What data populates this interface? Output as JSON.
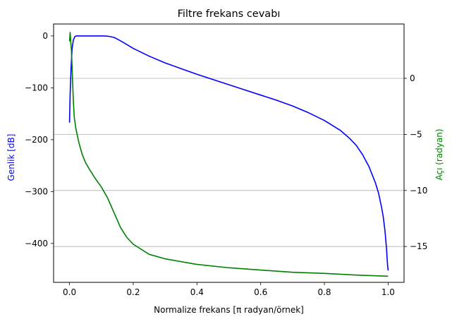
{
  "chart_data": {
    "type": "line",
    "title": "Filtre frekans cevabı",
    "xlabel": "Normalize frekans [π radyan/örnek]",
    "ylabel_left": "Genlik [dB]",
    "ylabel_right": "Açı (radyan)",
    "xlim": [
      -0.05,
      1.05
    ],
    "ylim_left": [
      -475,
      23
    ],
    "ylim_right": [
      -18.2,
      4.85
    ],
    "xticks": [
      0.0,
      0.2,
      0.4,
      0.6,
      0.8,
      1.0
    ],
    "xtick_labels": [
      "0.0",
      "0.2",
      "0.4",
      "0.6",
      "0.8",
      "1.0"
    ],
    "yticks_left": [
      0,
      -100,
      -200,
      -300,
      -400
    ],
    "ytick_labels_left": [
      "0",
      "−100",
      "−200",
      "−300",
      "−400"
    ],
    "yticks_right": [
      0,
      -5,
      -10,
      -15
    ],
    "ytick_labels_right": [
      "0",
      "−5",
      "−10",
      "−15"
    ],
    "grid": "horizontal lines at right-axis ticks",
    "colors": {
      "magnitude": "#0000ff",
      "phase": "#008000",
      "grid": "#b0b0b0",
      "axes": "#000000"
    },
    "series": [
      {
        "axis": "left",
        "color": "#0000ff",
        "x": [
          0.0,
          0.002,
          0.005,
          0.008,
          0.012,
          0.016,
          0.02,
          0.03,
          0.05,
          0.08,
          0.11,
          0.12,
          0.13,
          0.14,
          0.15,
          0.17,
          0.2,
          0.25,
          0.3,
          0.35,
          0.4,
          0.45,
          0.5,
          0.55,
          0.6,
          0.65,
          0.7,
          0.75,
          0.8,
          0.85,
          0.88,
          0.9,
          0.92,
          0.94,
          0.96,
          0.97,
          0.98,
          0.985,
          0.99,
          0.995,
          0.998,
          1.0
        ],
        "y": [
          -167,
          -110,
          -60,
          -25,
          -8,
          -2,
          0,
          0,
          0,
          0,
          0,
          -0.5,
          -1.5,
          -3,
          -6,
          -13,
          -24,
          -39,
          -52,
          -63,
          -74,
          -84,
          -94,
          -104,
          -114,
          -124,
          -135,
          -148,
          -163,
          -182,
          -198,
          -211,
          -229,
          -252,
          -283,
          -303,
          -332,
          -350,
          -375,
          -410,
          -440,
          -452
        ]
      },
      {
        "axis": "right",
        "color": "#008000",
        "x": [
          0.0,
          0.002,
          0.004,
          0.006,
          0.008,
          0.01,
          0.012,
          0.015,
          0.02,
          0.03,
          0.04,
          0.05,
          0.06,
          0.08,
          0.1,
          0.12,
          0.14,
          0.16,
          0.18,
          0.2,
          0.25,
          0.3,
          0.4,
          0.5,
          0.6,
          0.7,
          0.8,
          0.9,
          1.0
        ],
        "y": [
          3.3,
          4.1,
          3.2,
          2.5,
          1.0,
          -0.5,
          -2.0,
          -3.5,
          -4.5,
          -5.8,
          -6.8,
          -7.5,
          -8.0,
          -8.9,
          -9.7,
          -10.7,
          -12.0,
          -13.3,
          -14.2,
          -14.8,
          -15.7,
          -16.1,
          -16.6,
          -16.9,
          -17.1,
          -17.3,
          -17.4,
          -17.55,
          -17.65
        ]
      }
    ]
  }
}
